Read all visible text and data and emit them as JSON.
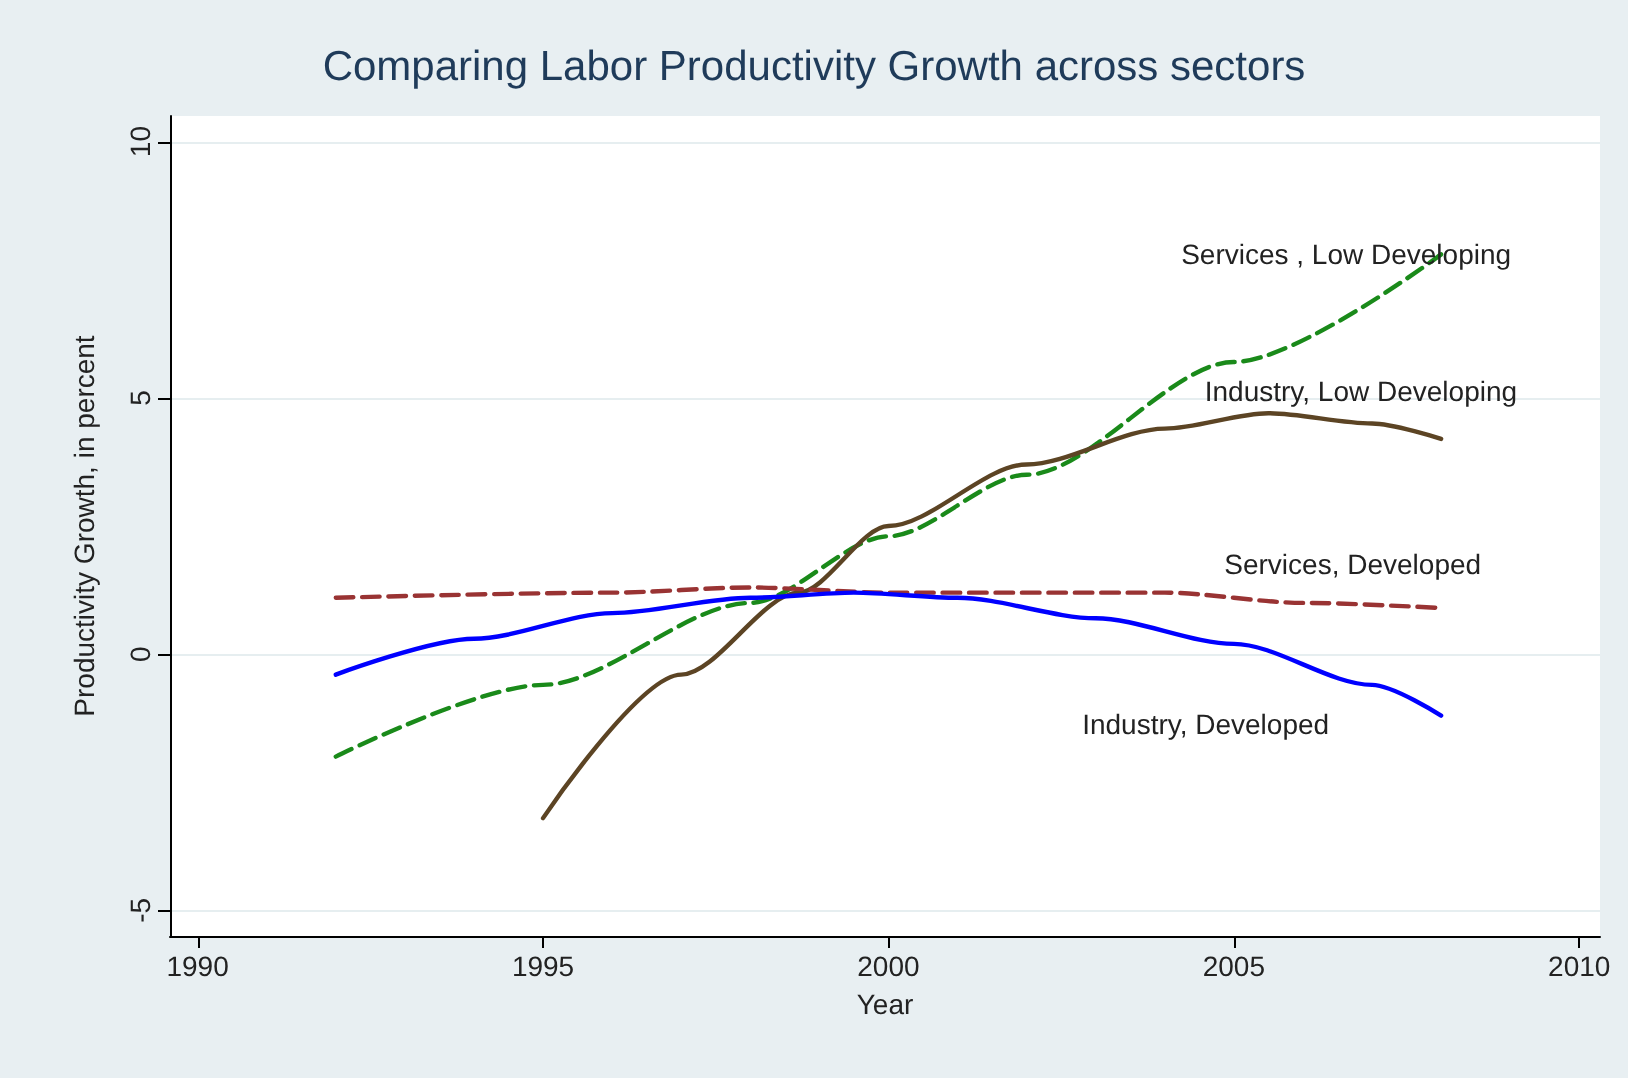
{
  "chart_data": {
    "type": "line",
    "title": "Comparing Labor Productivity Growth across sectors",
    "xlabel": "Year",
    "ylabel": "Productivity Growth, in percent",
    "xlim": [
      1989.6,
      2010.3
    ],
    "xticks": [
      1990,
      1995,
      2000,
      2005,
      2010
    ],
    "ylim": [
      -5.5,
      10.5
    ],
    "yticks": [
      -5,
      0,
      5,
      10
    ],
    "grid": "y",
    "legend": false,
    "marker": "none",
    "series": [
      {
        "name": "Services , Low Developing",
        "color": "#1a8a1a",
        "line_style": "dashed",
        "x": [
          1992,
          1995,
          1998,
          2000,
          2002,
          2005,
          2008
        ],
        "values": [
          -2.0,
          -0.6,
          1.0,
          2.3,
          3.5,
          5.7,
          7.8
        ]
      },
      {
        "name": "Industry, Low Developing",
        "color": "#5c4424",
        "line_style": "solid",
        "x": [
          1995,
          1997,
          1998.7,
          2000,
          2002,
          2004,
          2005.5,
          2007,
          2008
        ],
        "values": [
          -3.2,
          -0.4,
          1.2,
          2.5,
          3.7,
          4.4,
          4.7,
          4.5,
          4.2
        ]
      },
      {
        "name": "Services, Developed",
        "color": "#993333",
        "line_style": "dashed",
        "x": [
          1992,
          1996,
          1998,
          2000,
          2004,
          2006,
          2008
        ],
        "values": [
          1.1,
          1.2,
          1.3,
          1.2,
          1.2,
          1.0,
          0.9
        ]
      },
      {
        "name": "Industry, Developed",
        "color": "#0000ff",
        "line_style": "solid",
        "x": [
          1992,
          1994,
          1996,
          1998,
          1999.5,
          2001,
          2003,
          2005,
          2007,
          2008
        ],
        "values": [
          -0.4,
          0.3,
          0.8,
          1.1,
          1.2,
          1.1,
          0.7,
          0.2,
          -0.6,
          -1.2
        ]
      }
    ]
  }
}
